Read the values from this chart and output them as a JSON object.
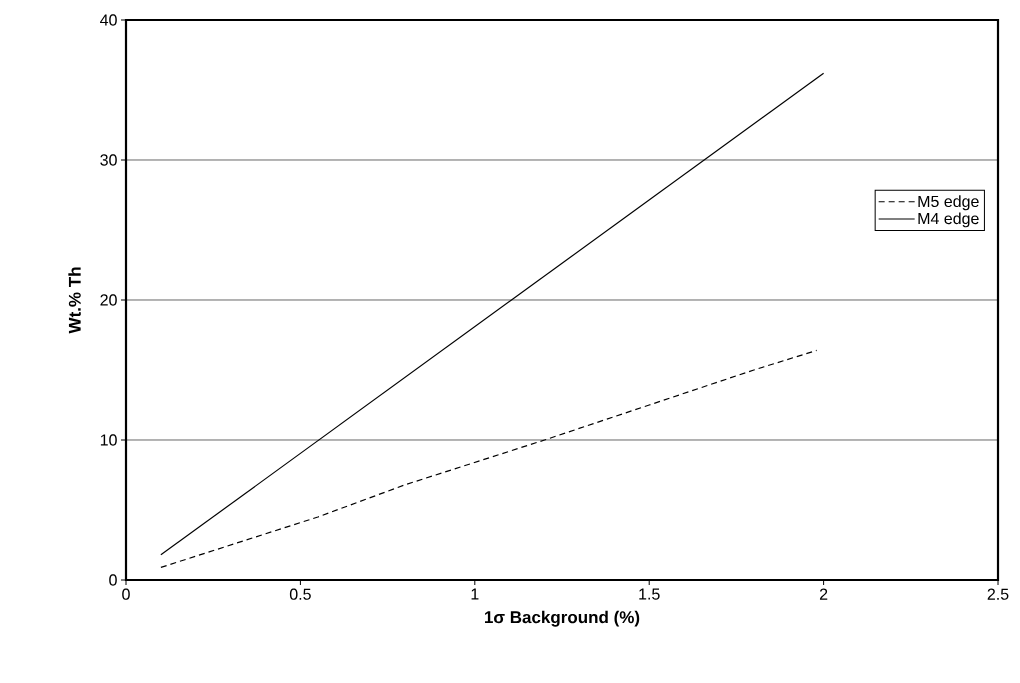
{
  "chart_data": {
    "type": "line",
    "xlabel": "1σ Background (%)",
    "ylabel": "Wt.% Th",
    "xlim": [
      0,
      2.5
    ],
    "xticks": [
      0,
      0.5,
      1,
      1.5,
      2,
      2.5
    ],
    "ylim": [
      0,
      40
    ],
    "yticks": [
      0,
      10,
      20,
      30,
      40
    ],
    "grid": "y",
    "legend": "right",
    "series": [
      {
        "name": "M5 edge",
        "color": "#000000",
        "line_style": "dashed",
        "x": [
          0.1,
          0.55,
          0.8,
          1.2,
          1.5,
          1.8,
          1.98
        ],
        "values": [
          0.9,
          4.5,
          6.8,
          10,
          12.5,
          15.0,
          16.4
        ]
      },
      {
        "name": "M4 edge",
        "color": "#000000",
        "line_style": "solid",
        "x": [
          0.1,
          2
        ],
        "values": [
          1.8,
          36.2
        ]
      }
    ]
  }
}
